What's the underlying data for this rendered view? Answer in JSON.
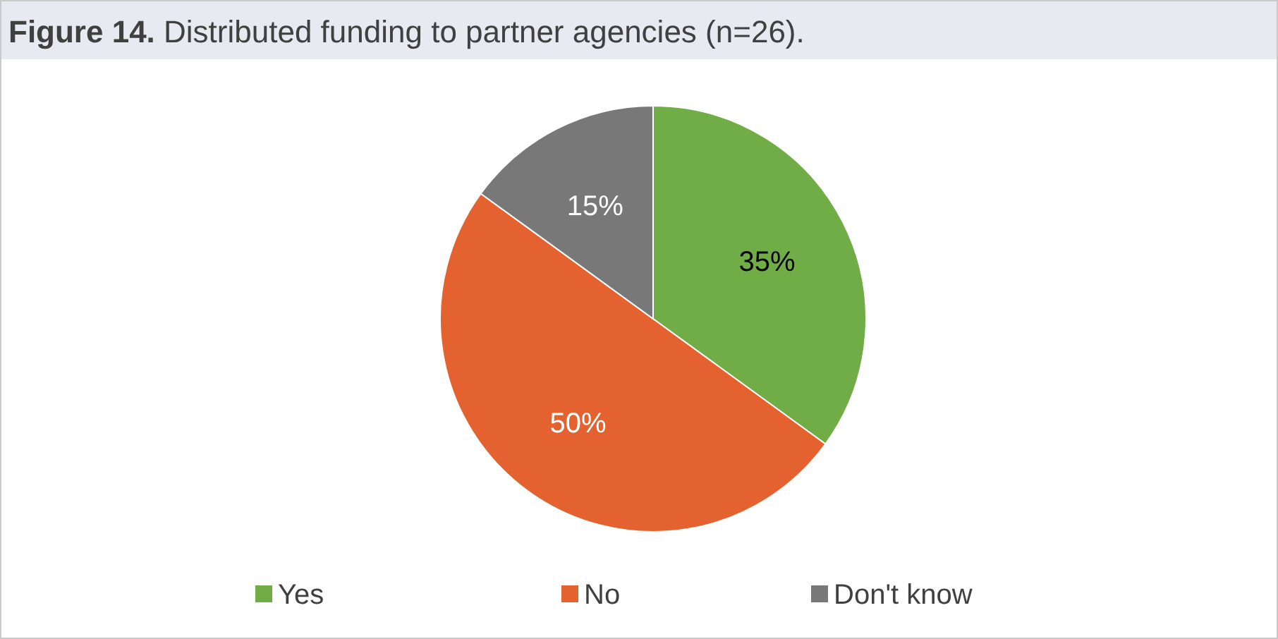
{
  "chart_data": {
    "type": "pie",
    "title": "Figure 14. Distributed funding to partner agencies (n=26).",
    "categories": [
      "Yes",
      "No",
      "Don't know"
    ],
    "values": [
      35,
      50,
      15
    ],
    "colors": [
      "#70ad47",
      "#e4622f",
      "#787878"
    ],
    "value_labels": [
      "35%",
      "50%",
      "15%"
    ],
    "legend": "bottom"
  }
}
